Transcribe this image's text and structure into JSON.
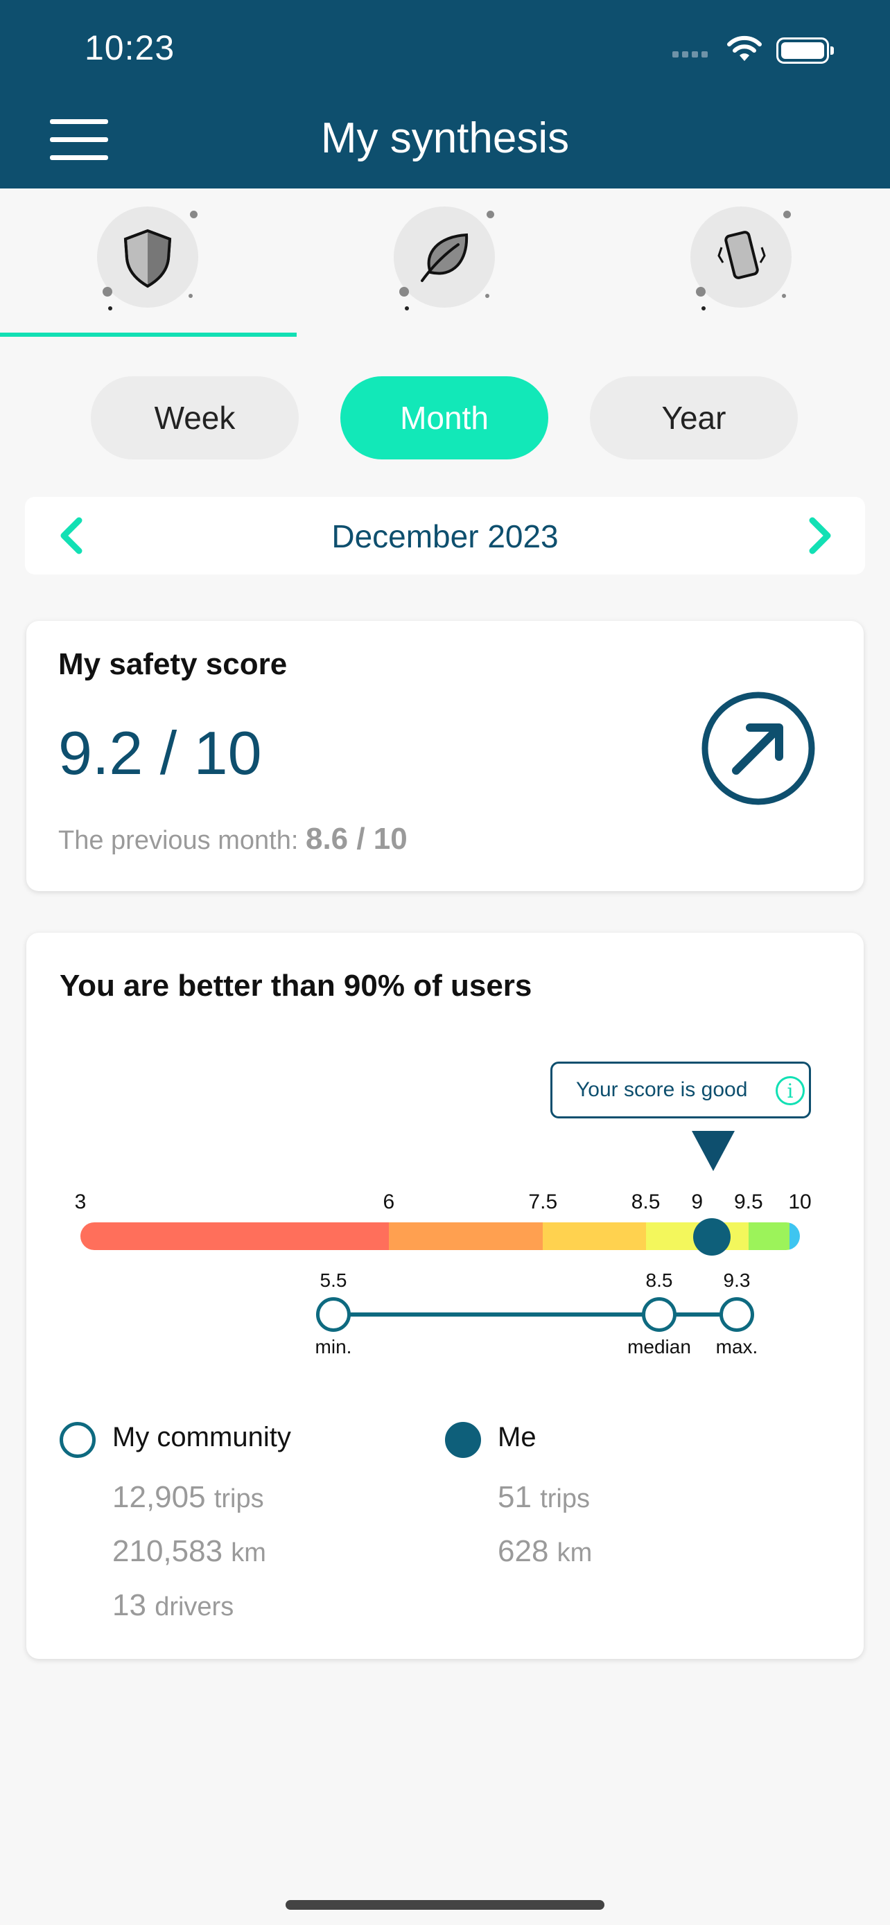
{
  "status_bar": {
    "time": "10:23"
  },
  "header": {
    "title": "My synthesis"
  },
  "category_tabs": [
    {
      "icon": "shield-icon",
      "active": true
    },
    {
      "icon": "leaf-icon",
      "active": false
    },
    {
      "icon": "vibrating-phone-icon",
      "active": false
    }
  ],
  "period_tabs": [
    {
      "label": "Week",
      "active": false
    },
    {
      "label": "Month",
      "active": true
    },
    {
      "label": "Year",
      "active": false
    }
  ],
  "month_nav": {
    "label": "December 2023"
  },
  "safety_card": {
    "title": "My safety score",
    "score": "9.2 / 10",
    "previous_label": "The previous month:",
    "previous_value": "8.6 / 10"
  },
  "comparison_card": {
    "title": "You are better than 90% of users",
    "tooltip": "Your score is good",
    "scale_ticks": [
      "3",
      "6",
      "7.5",
      "8.5",
      "9",
      "9.5",
      "10"
    ],
    "my_score": 9.2,
    "segments": [
      {
        "from": 3,
        "to": 6,
        "color": "#ff6f5b"
      },
      {
        "from": 6,
        "to": 7.5,
        "color": "#ffa050"
      },
      {
        "from": 7.5,
        "to": 8.5,
        "color": "#ffd24f"
      },
      {
        "from": 8.5,
        "to": 9.5,
        "color": "#f3f75c"
      },
      {
        "from": 9.5,
        "to": 9.9,
        "color": "#9cf35a"
      },
      {
        "from": 9.9,
        "to": 10,
        "color": "#3ec5f0"
      }
    ],
    "range": {
      "min_value": "5.5",
      "min_label": "min.",
      "median_value": "8.5",
      "median_label": "median",
      "max_value": "9.3",
      "max_label": "max."
    },
    "community": {
      "label": "My community",
      "trips_value": "12,905",
      "trips_unit": "trips",
      "km_value": "210,583",
      "km_unit": "km",
      "drivers_value": "13",
      "drivers_unit": "drivers"
    },
    "me": {
      "label": "Me",
      "trips_value": "51",
      "trips_unit": "trips",
      "km_value": "628",
      "km_unit": "km"
    }
  },
  "colors": {
    "primary": "#0e4f6e",
    "accent": "#12e8b8"
  }
}
